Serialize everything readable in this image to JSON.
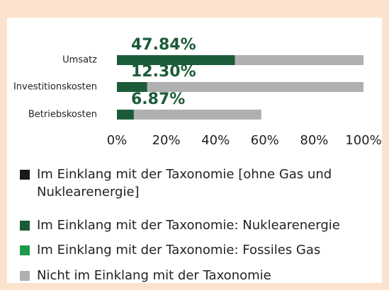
{
  "chart_data": {
    "type": "bar",
    "orientation": "horizontal",
    "stacked": true,
    "categories": [
      "Umsatz",
      "Investitionskosten",
      "Betriebskosten"
    ],
    "series": [
      {
        "name": "Im Einklang mit der Taxonomie [ohne Gas und Nuklearenergie]",
        "color": "#1a1a1a",
        "values": [
          0,
          0,
          0
        ]
      },
      {
        "name": "Im Einklang mit der Taxonomie: Nuklearenergie",
        "color": "#1c5b38",
        "values": [
          47.84,
          12.3,
          6.87
        ],
        "value_labels": [
          "47.84%",
          "12.30%",
          "6.87%"
        ]
      },
      {
        "name": "Im Einklang mit der Taxonomie: Fossiles Gas",
        "color": "#1e9a4e",
        "values": [
          0,
          0,
          0
        ]
      },
      {
        "name": "Nicht im Einklang mit der Taxonomie",
        "color": "#b0b0b2",
        "values": [
          52.16,
          87.7,
          51.7
        ]
      }
    ],
    "xlim": [
      0,
      100
    ],
    "xticks": [
      {
        "value": 0,
        "label": "0%"
      },
      {
        "value": 20,
        "label": "20%"
      },
      {
        "value": 40,
        "label": "40%"
      },
      {
        "value": 60,
        "label": "60%"
      },
      {
        "value": 80,
        "label": "80%"
      },
      {
        "value": 100,
        "label": "100%"
      }
    ],
    "legend": "bottom"
  }
}
